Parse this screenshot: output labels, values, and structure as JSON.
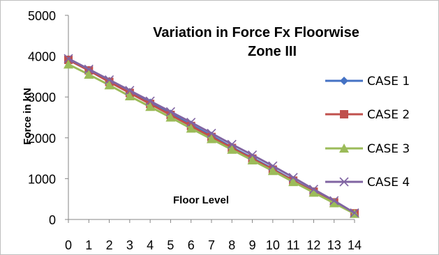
{
  "chart_data": {
    "type": "line",
    "title": "Variation in Force Fx Floorwise",
    "subtitle": "Zone III",
    "xlabel": "Floor Level",
    "ylabel": "Force in kN",
    "x": [
      0,
      1,
      2,
      3,
      4,
      5,
      6,
      7,
      8,
      9,
      10,
      11,
      12,
      13,
      14
    ],
    "xlim": [
      0,
      14
    ],
    "ylim": [
      0,
      5000
    ],
    "yticks": [
      0,
      1000,
      2000,
      3000,
      4000,
      5000
    ],
    "grid": false,
    "legend_position": "right",
    "series": [
      {
        "name": "CASE 1",
        "color": "#4472C4",
        "marker": "diamond",
        "values": [
          3920,
          3660,
          3390,
          3120,
          2860,
          2590,
          2320,
          2050,
          1770,
          1510,
          1240,
          960,
          690,
          420,
          150
        ]
      },
      {
        "name": "CASE 2",
        "color": "#C0504D",
        "marker": "square",
        "values": [
          3910,
          3650,
          3370,
          3100,
          2830,
          2560,
          2290,
          2020,
          1750,
          1490,
          1220,
          950,
          680,
          420,
          150
        ]
      },
      {
        "name": "CASE 3",
        "color": "#9BBB59",
        "marker": "triangle",
        "values": [
          3800,
          3550,
          3290,
          3020,
          2760,
          2500,
          2230,
          1970,
          1710,
          1450,
          1190,
          920,
          660,
          400,
          140
        ]
      },
      {
        "name": "CASE 4",
        "color": "#8064A2",
        "marker": "x",
        "values": [
          3940,
          3680,
          3420,
          3160,
          2900,
          2640,
          2380,
          2110,
          1840,
          1580,
          1310,
          1030,
          740,
          460,
          160
        ]
      }
    ]
  }
}
